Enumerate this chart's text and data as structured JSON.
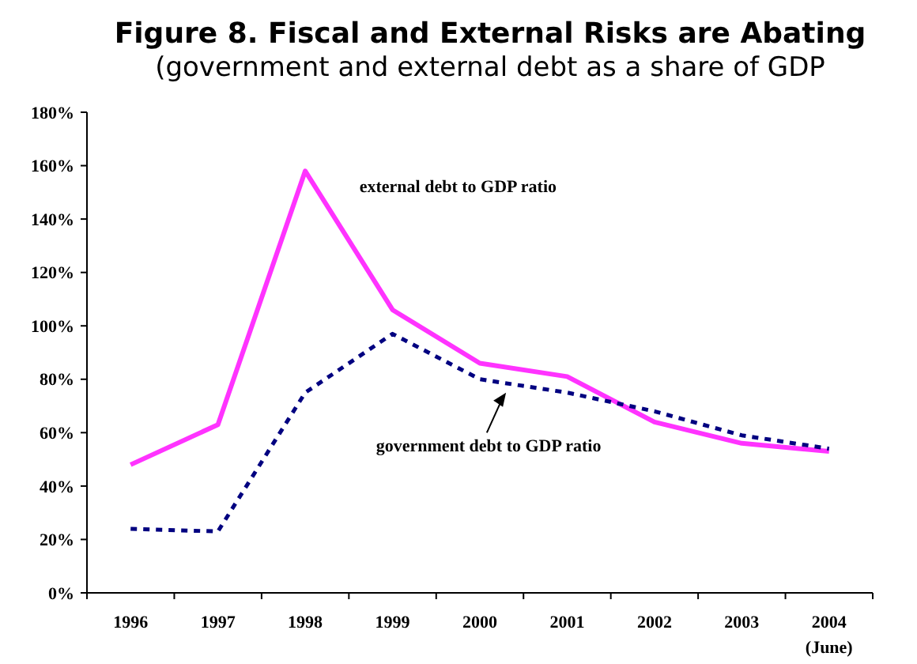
{
  "chart_data": {
    "type": "line",
    "title": "Figure 8. Fiscal and External Risks are Abating",
    "subtitle": "(government and external debt as a share of GDP",
    "categories": [
      "1996",
      "1997",
      "1998",
      "1999",
      "2000",
      "2001",
      "2002",
      "2003",
      "2004\n(June)"
    ],
    "series": [
      {
        "name": "external debt to GDP ratio",
        "color": "#ff33ff",
        "line_style": "solid",
        "values": [
          48,
          63,
          158,
          106,
          86,
          81,
          64,
          56,
          53
        ]
      },
      {
        "name": "government debt to GDP ratio",
        "color": "#000080",
        "line_style": "dashed",
        "values": [
          24,
          23,
          75,
          97,
          80,
          75,
          68,
          59,
          54
        ]
      }
    ],
    "ylim": [
      0,
      180
    ],
    "yticks": [
      {
        "value": 0,
        "label": "0%"
      },
      {
        "value": 20,
        "label": "20%"
      },
      {
        "value": 40,
        "label": "40%"
      },
      {
        "value": 60,
        "label": "60%"
      },
      {
        "value": 80,
        "label": "80%"
      },
      {
        "value": 100,
        "label": "100%"
      },
      {
        "value": 120,
        "label": "120%"
      },
      {
        "value": 140,
        "label": "140%"
      },
      {
        "value": 160,
        "label": "160%"
      },
      {
        "value": 180,
        "label": "180%"
      }
    ],
    "grid": false
  }
}
